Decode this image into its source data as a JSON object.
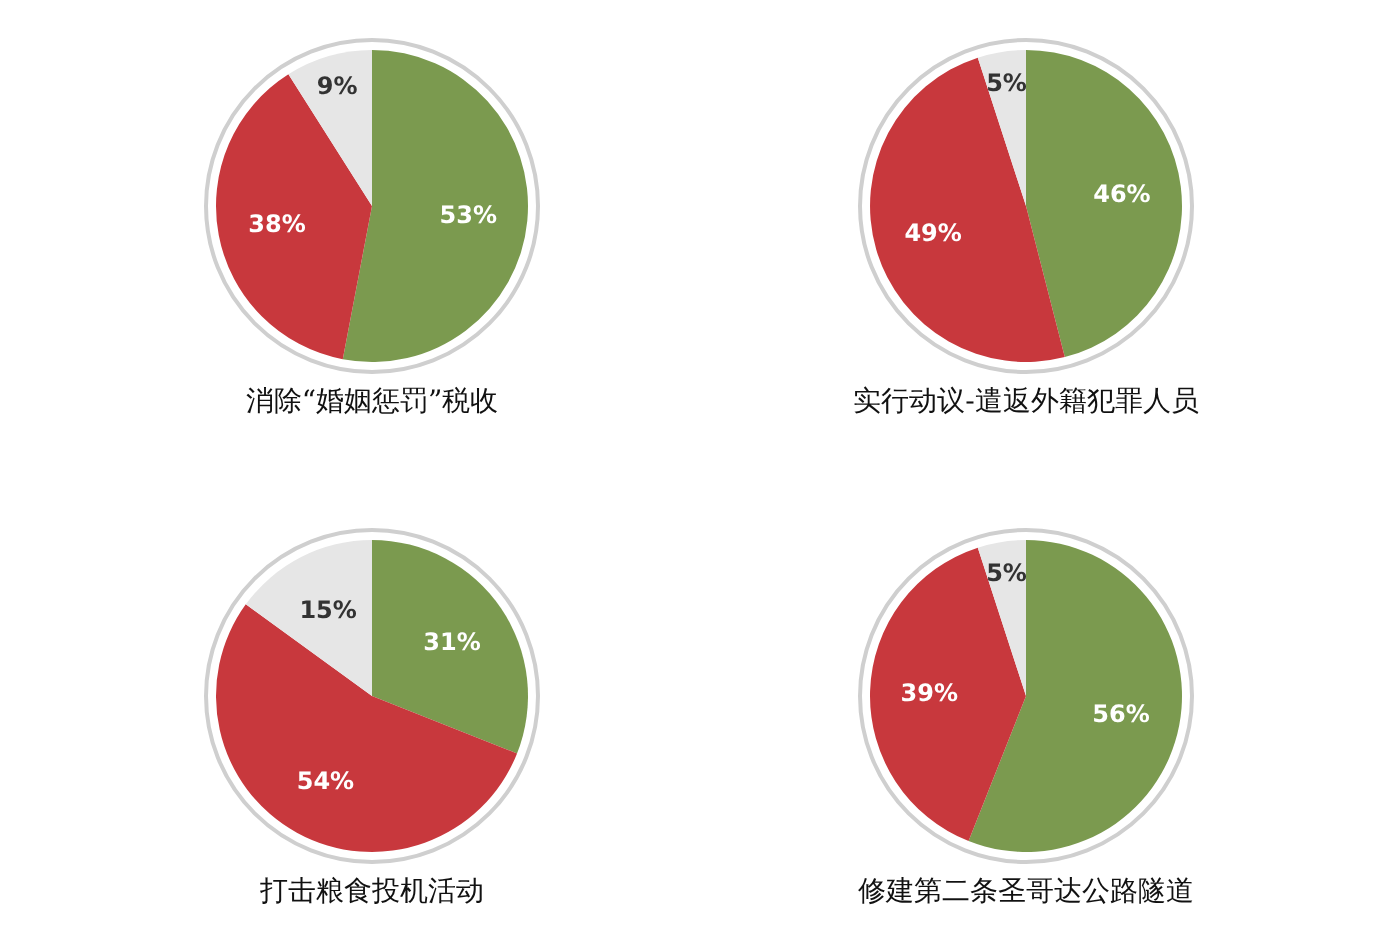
{
  "chart_data": [
    {
      "type": "pie",
      "title": "消除“婚姻惩罚”税收",
      "categories": [
        null,
        null,
        null
      ],
      "values": [
        53,
        38,
        9
      ],
      "value_labels": [
        "53%",
        "38%",
        "9%"
      ],
      "colors": [
        "#7b9a4f",
        "#c8383d",
        "#e6e6e6"
      ]
    },
    {
      "type": "pie",
      "title": "实行动议-遣返外籍犯罪人员",
      "categories": [
        null,
        null,
        null
      ],
      "values": [
        46,
        49,
        5
      ],
      "value_labels": [
        "46%",
        "49%",
        "5%"
      ],
      "colors": [
        "#7b9a4f",
        "#c8383d",
        "#e6e6e6"
      ]
    },
    {
      "type": "pie",
      "title": "打击粮食投机活动",
      "categories": [
        null,
        null,
        null
      ],
      "values": [
        31,
        54,
        15
      ],
      "value_labels": [
        "31%",
        "54%",
        "15%"
      ],
      "colors": [
        "#7b9a4f",
        "#c8383d",
        "#e6e6e6"
      ]
    },
    {
      "type": "pie",
      "title": "修建第二条圣哥达公路隧道",
      "categories": [
        null,
        null,
        null
      ],
      "values": [
        56,
        39,
        5
      ],
      "value_labels": [
        "56%",
        "39%",
        "5%"
      ],
      "colors": [
        "#7b9a4f",
        "#c8383d",
        "#e6e6e6"
      ]
    }
  ]
}
